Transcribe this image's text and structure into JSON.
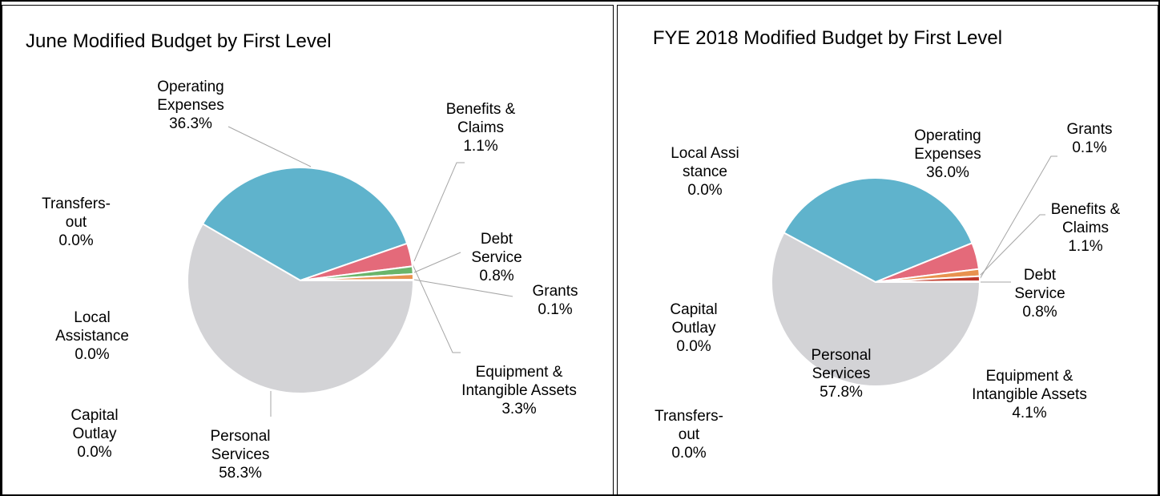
{
  "chart_data": [
    {
      "type": "pie",
      "title": "June Modified Budget by First Level",
      "categories": [
        "Personal Services",
        "Operating Expenses",
        "Equipment & Intangible Assets",
        "Benefits & Claims",
        "Debt Service",
        "Grants",
        "Local Assistance",
        "Capital Outlay",
        "Transfers-out"
      ],
      "values": [
        58.3,
        36.3,
        3.3,
        1.1,
        0.8,
        0.1,
        0.0,
        0.0,
        0.0
      ],
      "value_labels": [
        "58.3%",
        "36.3%",
        "3.3%",
        "1.1%",
        "0.8%",
        "0.1%",
        "0.0%",
        "0.0%",
        "0.0%"
      ],
      "colors": [
        "#d3d3d6",
        "#5fb3cc",
        "#e46a7a",
        "#6ab56a",
        "#e8924f",
        "#c0504d",
        "#7f6aa8",
        "#9bbb59",
        "#4f81bd"
      ]
    },
    {
      "type": "pie",
      "title": "FYE 2018 Modified Budget by First Level",
      "categories": [
        "Personal Services",
        "Operating Expenses",
        "Equipment & Intangible Assets",
        "Benefits & Claims",
        "Debt Service",
        "Grants",
        "Local Assistance",
        "Capital Outlay",
        "Transfers-out"
      ],
      "values": [
        57.8,
        36.0,
        4.1,
        1.1,
        0.8,
        0.1,
        0.0,
        0.0,
        0.0
      ],
      "value_labels": [
        "57.8%",
        "36.0%",
        "4.1%",
        "1.1%",
        "0.8%",
        "0.1%",
        "0.0%",
        "0.0%",
        "0.0%"
      ],
      "colors": [
        "#d3d3d6",
        "#5fb3cc",
        "#e46a7a",
        "#e8924f",
        "#c0392b",
        "#c0504d",
        "#7f6aa8",
        "#9bbb59",
        "#4f81bd"
      ]
    }
  ]
}
